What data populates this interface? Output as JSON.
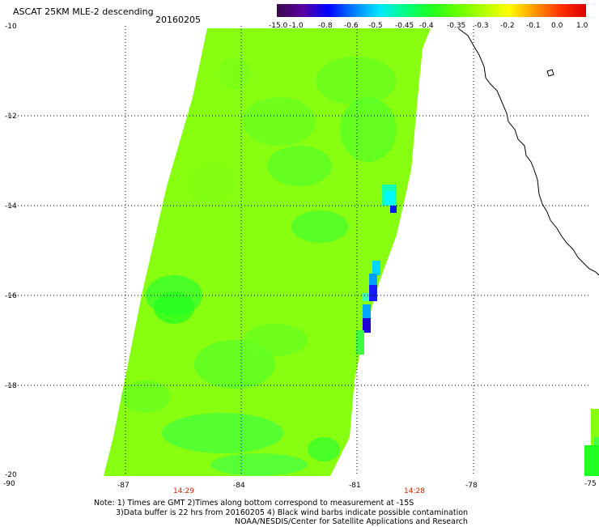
{
  "header": {
    "title": "ASCAT 25KM MLE-2 descending",
    "date": "20160205"
  },
  "colorbar": {
    "labels": [
      "-15.0",
      "-1.0",
      "-0.8",
      "-0.6",
      "-0.5",
      "-0.45",
      "-0.4",
      "-0.35",
      "-0.3",
      "-0.2",
      "-0.1",
      "0.0",
      "1.0"
    ],
    "colors": [
      "#3a0a4a",
      "#5a00a0",
      "#0000ff",
      "#0080ff",
      "#00e8ff",
      "#00ff80",
      "#20ff20",
      "#66ff00",
      "#b0ff00",
      "#ffff00",
      "#ff9900",
      "#ff3300",
      "#dd0000"
    ]
  },
  "axes": {
    "lat_labels": [
      "-10",
      "-12",
      "-14",
      "-16",
      "-18",
      "-20"
    ],
    "lon_labels": [
      "-90",
      "-87",
      "-84",
      "-81",
      "-78",
      "-75"
    ],
    "lat_range": [
      -20,
      -10
    ],
    "lon_range": [
      -90,
      -75
    ]
  },
  "times": {
    "t1": "14:29",
    "t2": "14:28"
  },
  "notes": {
    "line1": "Note: 1) Times are GMT 2)Times along bottom correspond to measurement at -15S",
    "line2": "3)Data buffer is 22 hrs from 20160205 4) Black wind barbs indicate possible contamination",
    "line3": "NOAA/NESDIS/Center for Satellite Applications and Research"
  },
  "swath": {
    "dominant_value": "-0.35",
    "coastal_anomaly_values": [
      "-0.45",
      "-0.5",
      "-0.8"
    ]
  }
}
